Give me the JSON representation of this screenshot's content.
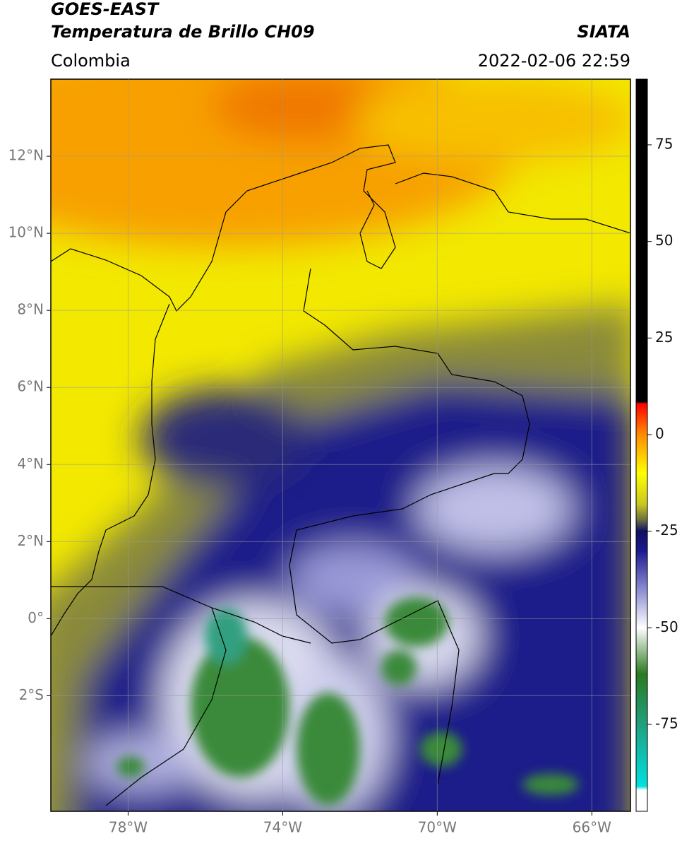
{
  "header": {
    "title": "GOES-EAST",
    "subtitle": "Temperatura de Brillo CH09",
    "organization": "SIATA",
    "region": "Colombia",
    "datetime": "2022-02-06 22:59"
  },
  "map": {
    "xlim": [
      -80,
      -65
    ],
    "ylim": [
      -5,
      14
    ],
    "xticks": [
      {
        "value": -78,
        "label": "78°W"
      },
      {
        "value": -74,
        "label": "74°W"
      },
      {
        "value": -70,
        "label": "70°W"
      },
      {
        "value": -66,
        "label": "66°W"
      }
    ],
    "yticks": [
      {
        "value": -2,
        "label": "2°S"
      },
      {
        "value": 0,
        "label": "0°"
      },
      {
        "value": 2,
        "label": "2°N"
      },
      {
        "value": 4,
        "label": "4°N"
      },
      {
        "value": 6,
        "label": "6°N"
      },
      {
        "value": 8,
        "label": "8°N"
      },
      {
        "value": 10,
        "label": "10°N"
      },
      {
        "value": 12,
        "label": "12°N"
      }
    ],
    "grid": true
  },
  "colorbar": {
    "lim": [
      -97.5,
      92
    ],
    "ticks": [
      -75,
      -50,
      -25,
      0,
      25,
      50,
      75
    ],
    "stops": [
      {
        "value": -97.5,
        "color": "#ffffff"
      },
      {
        "value": -92,
        "color": "#ffffff"
      },
      {
        "value": -91,
        "color": "#00e0e0"
      },
      {
        "value": -75,
        "color": "#20a080"
      },
      {
        "value": -62,
        "color": "#2a7a20"
      },
      {
        "value": -50,
        "color": "#ffffff"
      },
      {
        "value": -40,
        "color": "#8a8ad0"
      },
      {
        "value": -30,
        "color": "#1a1a90"
      },
      {
        "value": -25,
        "color": "#101060"
      },
      {
        "value": -22,
        "color": "#707040"
      },
      {
        "value": -18,
        "color": "#c8c820"
      },
      {
        "value": -10,
        "color": "#ffff00"
      },
      {
        "value": 0,
        "color": "#ff8c00"
      },
      {
        "value": 8,
        "color": "#ff0000"
      },
      {
        "value": 8.5,
        "color": "#000000"
      },
      {
        "value": 92,
        "color": "#000000"
      }
    ]
  }
}
